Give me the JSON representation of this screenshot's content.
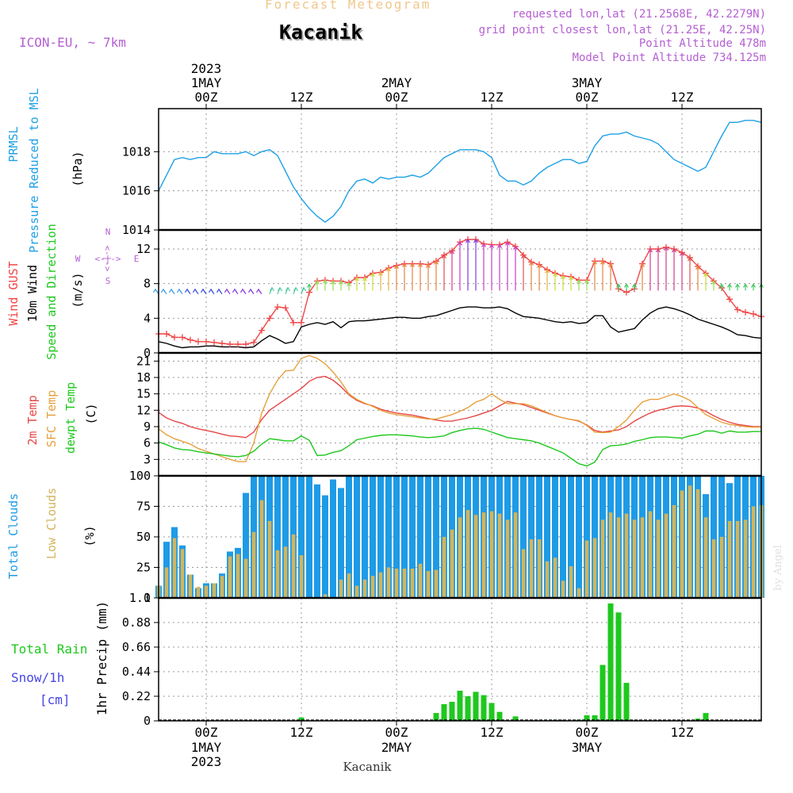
{
  "header": {
    "title": "Forecast Meteogram",
    "location": "Kacanik",
    "model": "ICON-EU, ~ 7km",
    "requested": "requested lon,lat (21.2568E, 42.2279N)",
    "gridpoint": "grid point closest lon,lat (21.25E, 42.25N)",
    "altitude": "Point Altitude 478m",
    "model_altitude": "Model Point Altitude 734.125m",
    "watermark": "by Angel",
    "footer": "Kacanik"
  },
  "colors": {
    "pressure": "#1ea0e6",
    "gust": "#f04646",
    "wind": "#000000",
    "temp": "#e64646",
    "sfc_temp": "#e6a03c",
    "dewpt": "#1ec81e",
    "total_clouds": "#1e9be6",
    "low_clouds": "#d2b45a",
    "rain": "#1ec81e",
    "snow": "#4646e6",
    "violet": "#b45fd2"
  },
  "axis": {
    "top_year": "2023",
    "bottom_year": "2023",
    "ticks": [
      {
        "h": 6,
        "label": "00Z",
        "date": "1MAY"
      },
      {
        "h": 18,
        "label": "12Z",
        "date": ""
      },
      {
        "h": 30,
        "label": "00Z",
        "date": "2MAY"
      },
      {
        "h": 42,
        "label": "12Z",
        "date": ""
      },
      {
        "h": 54,
        "label": "00Z",
        "date": "3MAY"
      },
      {
        "h": 66,
        "label": "12Z",
        "date": ""
      }
    ]
  },
  "chart_data": [
    {
      "type": "line",
      "panel": "pressure",
      "label_lines": [
        "PRMSL",
        "Pressure Reduced to MSL"
      ],
      "unit": "(hPa)",
      "yticks": [
        1014,
        1016,
        1018
      ],
      "ylim": [
        1014,
        1020.2
      ],
      "series": [
        {
          "color_key": "pressure",
          "values": [
            1016.0,
            1016.8,
            1017.6,
            1017.7,
            1017.6,
            1017.7,
            1017.7,
            1018.0,
            1017.9,
            1017.9,
            1017.9,
            1018.0,
            1017.8,
            1018.0,
            1018.1,
            1017.8,
            1017.0,
            1016.2,
            1015.6,
            1015.1,
            1014.7,
            1014.4,
            1014.7,
            1015.2,
            1016.0,
            1016.5,
            1016.6,
            1016.4,
            1016.7,
            1016.6,
            1016.7,
            1016.7,
            1016.8,
            1016.7,
            1016.9,
            1017.3,
            1017.7,
            1017.9,
            1018.1,
            1018.1,
            1018.1,
            1018.0,
            1017.7,
            1016.8,
            1016.5,
            1016.5,
            1016.3,
            1016.5,
            1016.9,
            1017.2,
            1017.4,
            1017.6,
            1017.6,
            1017.4,
            1017.5,
            1018.3,
            1018.8,
            1018.9,
            1018.9,
            1019.0,
            1018.8,
            1018.7,
            1018.6,
            1018.4,
            1018.0,
            1017.6,
            1017.4,
            1017.2,
            1017.0,
            1017.2,
            1018.0,
            1018.8,
            1019.5,
            1019.5,
            1019.6,
            1019.6,
            1019.5
          ]
        }
      ]
    },
    {
      "type": "line",
      "panel": "wind",
      "label_lines": [
        "Wind GUST",
        "10m Wind",
        "Speed and Direction"
      ],
      "unit": "(m/s)",
      "compass": {
        "west": "W",
        "east": "E",
        "north": "N",
        "south": "S",
        "glyph": "<-|->"
      },
      "yticks": [
        0,
        4,
        8,
        12
      ],
      "ylim": [
        0,
        14.2
      ],
      "series": [
        {
          "name": "Wind GUST",
          "color_key": "gust",
          "values": [
            2.2,
            2.2,
            1.8,
            1.8,
            1.5,
            1.3,
            1.3,
            1.2,
            1.1,
            1.0,
            1.0,
            1.0,
            1.2,
            2.6,
            4.0,
            5.3,
            5.2,
            3.5,
            3.5,
            7.0,
            8.3,
            8.4,
            8.3,
            8.3,
            8.1,
            8.7,
            8.7,
            9.2,
            9.3,
            9.8,
            10.1,
            10.3,
            10.3,
            10.3,
            10.2,
            10.6,
            11.3,
            11.8,
            12.8,
            13.1,
            13.1,
            12.6,
            12.5,
            12.5,
            12.8,
            12.3,
            11.3,
            10.5,
            10.2,
            9.6,
            9.2,
            8.9,
            8.8,
            8.4,
            8.4,
            10.6,
            10.6,
            10.3,
            7.4,
            7.0,
            7.4,
            10.3,
            12.0,
            12.0,
            12.2,
            12.0,
            11.6,
            11.0,
            10.0,
            9.2,
            8.3,
            7.5,
            6.2,
            5.0,
            4.7,
            4.5,
            4.2
          ]
        },
        {
          "name": "10m Wind",
          "color_key": "wind",
          "values": [
            1.3,
            1.1,
            0.8,
            0.6,
            0.7,
            0.7,
            0.8,
            0.8,
            0.7,
            0.7,
            0.7,
            0.6,
            0.7,
            1.4,
            2.0,
            1.6,
            1.1,
            1.3,
            3.0,
            3.3,
            3.5,
            3.3,
            3.6,
            2.9,
            3.6,
            3.7,
            3.7,
            3.8,
            3.9,
            4.0,
            4.1,
            4.1,
            4.0,
            4.0,
            4.2,
            4.3,
            4.6,
            4.9,
            5.2,
            5.3,
            5.3,
            5.2,
            5.2,
            5.3,
            5.1,
            4.6,
            4.2,
            4.1,
            4.0,
            3.8,
            3.6,
            3.5,
            3.6,
            3.4,
            3.5,
            4.3,
            4.3,
            3.0,
            2.4,
            2.6,
            2.8,
            3.8,
            4.6,
            5.1,
            5.3,
            5.1,
            4.8,
            4.4,
            3.9,
            3.6,
            3.3,
            3.0,
            2.6,
            2.1,
            2.0,
            1.8,
            1.7
          ]
        }
      ],
      "wind_barbs": {
        "from_hour": 19,
        "to_hour": 76,
        "step": 1
      }
    },
    {
      "type": "line",
      "panel": "temperature",
      "label_lines": [
        "2m Temp",
        "SFC Temp",
        "dewpt Temp"
      ],
      "unit": "(C)",
      "yticks": [
        3,
        6,
        9,
        12,
        15,
        18,
        21
      ],
      "ylim": [
        0,
        22.5
      ],
      "series": [
        {
          "name": "2m Temp",
          "color_key": "temp",
          "values": [
            11.6,
            10.6,
            10.0,
            9.6,
            9.0,
            8.6,
            8.3,
            8.0,
            7.6,
            7.3,
            7.2,
            7.0,
            8.0,
            10.3,
            12.0,
            13.0,
            14.0,
            15.0,
            16.0,
            17.3,
            18.0,
            18.2,
            17.5,
            16.3,
            14.8,
            13.8,
            13.2,
            12.8,
            12.2,
            11.8,
            11.5,
            11.3,
            11.1,
            10.8,
            10.5,
            10.2,
            10.0,
            10.0,
            10.3,
            10.6,
            11.0,
            11.5,
            12.0,
            12.8,
            13.6,
            13.3,
            13.0,
            12.5,
            12.0,
            11.5,
            11.0,
            10.6,
            10.3,
            10.0,
            9.3,
            8.3,
            8.0,
            8.2,
            8.4,
            9.0,
            10.0,
            10.8,
            11.5,
            12.0,
            12.3,
            12.7,
            12.8,
            12.7,
            12.4,
            11.8,
            11.0,
            10.3,
            9.8,
            9.4,
            9.2,
            9.0,
            9.0
          ]
        },
        {
          "name": "SFC Temp",
          "color_key": "sfc_temp",
          "values": [
            8.6,
            7.5,
            6.8,
            6.3,
            5.8,
            5.0,
            4.5,
            4.0,
            3.5,
            3.0,
            2.6,
            2.6,
            6.0,
            11.5,
            15.0,
            17.5,
            19.2,
            19.3,
            21.5,
            22.0,
            21.5,
            20.5,
            19.0,
            17.2,
            15.0,
            14.0,
            13.3,
            12.7,
            12.0,
            11.5,
            11.2,
            11.0,
            10.8,
            10.6,
            10.4,
            10.4,
            10.8,
            11.2,
            11.8,
            12.5,
            13.5,
            14.0,
            15.0,
            14.0,
            13.2,
            13.2,
            13.2,
            12.8,
            12.2,
            11.6,
            11.0,
            10.6,
            10.3,
            10.1,
            9.2,
            8.0,
            7.9,
            8.0,
            9.0,
            10.2,
            12.0,
            13.5,
            14.0,
            14.0,
            14.5,
            15.0,
            14.5,
            13.8,
            12.5,
            11.2,
            10.5,
            9.8,
            9.4,
            9.2,
            9.0,
            8.9,
            8.9
          ]
        },
        {
          "name": "dewpt Temp",
          "color_key": "dewpt",
          "values": [
            6.2,
            5.7,
            5.1,
            4.8,
            4.7,
            4.4,
            4.2,
            4.0,
            3.8,
            3.6,
            3.5,
            3.7,
            4.5,
            5.8,
            6.8,
            6.6,
            6.4,
            6.4,
            7.3,
            6.5,
            3.7,
            3.8,
            4.3,
            4.6,
            5.5,
            6.6,
            6.9,
            7.2,
            7.4,
            7.5,
            7.5,
            7.4,
            7.3,
            7.1,
            7.0,
            7.1,
            7.3,
            7.9,
            8.3,
            8.6,
            8.7,
            8.5,
            8.0,
            7.5,
            7.0,
            6.8,
            6.6,
            6.4,
            6.0,
            5.4,
            4.8,
            4.2,
            3.2,
            2.2,
            1.8,
            2.5,
            4.8,
            5.5,
            5.6,
            5.8,
            6.3,
            6.6,
            7.0,
            7.1,
            7.1,
            7.0,
            6.9,
            7.3,
            7.6,
            8.2,
            8.2,
            7.8,
            8.2,
            8.0,
            8.0,
            8.1,
            8.1
          ]
        }
      ]
    },
    {
      "type": "bar",
      "panel": "clouds",
      "label_lines": [
        "Total Clouds",
        "Low Clouds"
      ],
      "unit": "(%)",
      "yticks": [
        0,
        25,
        50,
        75,
        100
      ],
      "ylim": [
        0,
        100
      ],
      "series": [
        {
          "name": "Total Clouds",
          "color_key": "total_clouds",
          "values": [
            10,
            46,
            58,
            43,
            19,
            8,
            12,
            12,
            20,
            38,
            41,
            86,
            100,
            100,
            100,
            100,
            100,
            100,
            100,
            100,
            93,
            84,
            97,
            90,
            100,
            100,
            100,
            100,
            100,
            100,
            100,
            100,
            100,
            100,
            100,
            100,
            100,
            100,
            100,
            100,
            100,
            100,
            100,
            100,
            100,
            100,
            100,
            100,
            100,
            100,
            100,
            100,
            100,
            100,
            100,
            100,
            100,
            100,
            100,
            100,
            100,
            100,
            100,
            100,
            100,
            100,
            100,
            100,
            100,
            85,
            100,
            100,
            94,
            100,
            100,
            100,
            100
          ]
        },
        {
          "name": "Low Clouds",
          "color_key": "low_clouds",
          "values": [
            10,
            25,
            49,
            40,
            19,
            9,
            10,
            12,
            18,
            34,
            36,
            32,
            54,
            80,
            63,
            39,
            42,
            52,
            35,
            0,
            0,
            3,
            0,
            15,
            20,
            10,
            15,
            18,
            21,
            25,
            24,
            24,
            24,
            28,
            22,
            23,
            50,
            56,
            66,
            72,
            68,
            70,
            71,
            69,
            64,
            70,
            40,
            48,
            48,
            30,
            33,
            14,
            26,
            8,
            47,
            49,
            64,
            70,
            66,
            69,
            64,
            66,
            71,
            64,
            69,
            76,
            88,
            92,
            89,
            66,
            48,
            50,
            63,
            63,
            64,
            75,
            76
          ]
        }
      ]
    },
    {
      "type": "bar",
      "panel": "precipitation",
      "label_lines": [
        "Total Rain",
        "Snow/1h",
        "[cm]"
      ],
      "unit": "1hr Precip (mm)",
      "yticks": [
        0,
        0.22,
        0.44,
        0.66,
        0.88,
        1.1
      ],
      "ylim": [
        0,
        1.1
      ],
      "series": [
        {
          "name": "Total Rain",
          "color_key": "rain",
          "values": [
            0,
            0,
            0,
            0,
            0,
            0,
            0,
            0,
            0,
            0,
            0,
            0,
            0,
            0,
            0,
            0,
            0,
            0,
            0.03,
            0,
            0,
            0,
            0,
            0,
            0,
            0,
            0,
            0,
            0,
            0,
            0,
            0,
            0,
            0,
            0,
            0.07,
            0.15,
            0.17,
            0.27,
            0.22,
            0.26,
            0.23,
            0.16,
            0.08,
            0,
            0.04,
            0,
            0,
            0,
            0,
            0.01,
            0.01,
            0,
            0.01,
            0.05,
            0.05,
            0.5,
            1.05,
            0.97,
            0.34,
            0,
            0,
            0,
            0,
            0,
            0,
            0,
            0,
            0.02,
            0.07,
            0,
            0,
            0,
            0,
            0,
            0,
            0
          ]
        },
        {
          "name": "Snow/1h",
          "color_key": "snow",
          "values": [
            0,
            0,
            0,
            0,
            0,
            0,
            0,
            0,
            0,
            0,
            0,
            0,
            0,
            0,
            0,
            0,
            0,
            0,
            0,
            0,
            0,
            0,
            0,
            0,
            0,
            0,
            0,
            0,
            0,
            0,
            0,
            0,
            0,
            0,
            0,
            0,
            0,
            0,
            0,
            0,
            0,
            0,
            0,
            0,
            0,
            0,
            0,
            0,
            0,
            0,
            0,
            0,
            0,
            0,
            0,
            0,
            0,
            0,
            0,
            0,
            0,
            0,
            0,
            0,
            0,
            0,
            0,
            0,
            0,
            0,
            0,
            0,
            0,
            0,
            0,
            0,
            0
          ]
        }
      ]
    }
  ]
}
